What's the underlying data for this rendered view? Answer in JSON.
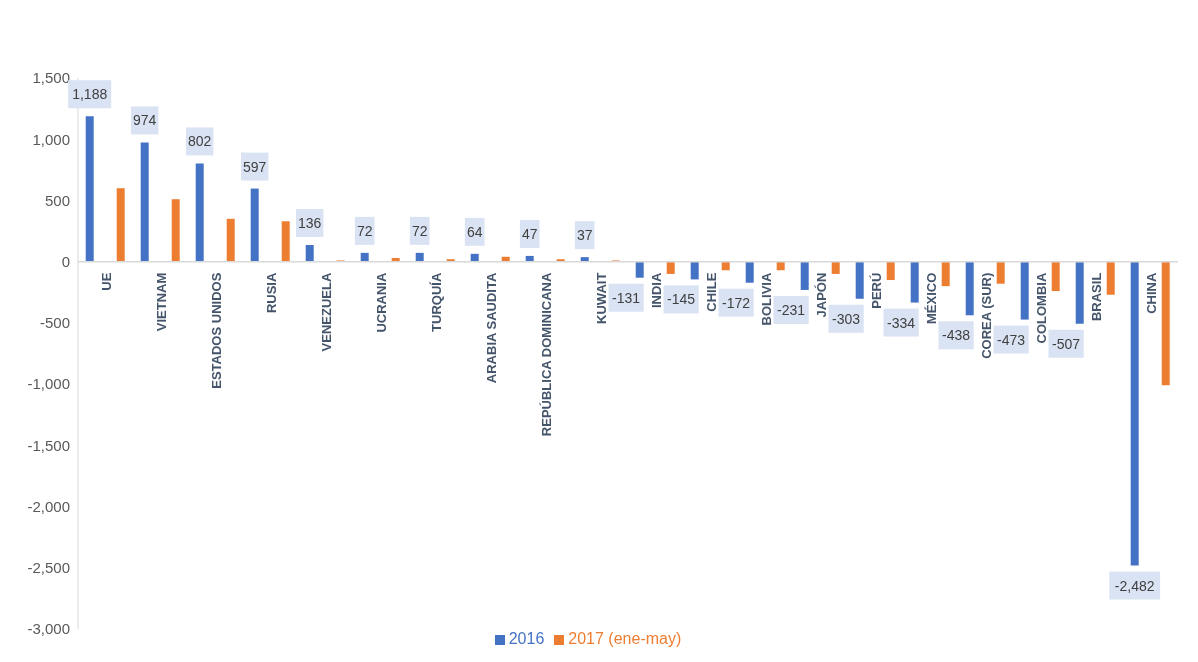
{
  "chart_data": {
    "type": "bar",
    "categories": [
      "UE",
      "VIETNAM",
      "ESTADOS UNIDOS",
      "RUSIA",
      "VENEZUELA",
      "UCRANIA",
      "TURQUÍA",
      "ARABIA SAUDITA",
      "REPÚBLICA DOMINICANA",
      "KUWAIT",
      "INDIA",
      "CHILE",
      "BOLIVIA",
      "JAPÓN",
      "PERÚ",
      "MÉXICO",
      "COREA (SUR)",
      "COLOMBIA",
      "BRASIL",
      "CHINA"
    ],
    "series": [
      {
        "name": "2016",
        "color": "#4472c4",
        "values": [
          1188,
          974,
          802,
          597,
          136,
          72,
          72,
          64,
          47,
          37,
          -131,
          -145,
          -172,
          -231,
          -303,
          -334,
          -438,
          -473,
          -507,
          -2482
        ],
        "value_labels": [
          "1,188",
          "974",
          "802",
          "597",
          "136",
          "72",
          "72",
          "64",
          "47",
          "37",
          "-131",
          "-145",
          "-172",
          "-231",
          "-303",
          "-334",
          "-438",
          "-473",
          "-507",
          "-2,482"
        ]
      },
      {
        "name": "2017 (ene-may)",
        "color": "#ed7d31",
        "values": [
          600,
          510,
          350,
          330,
          10,
          30,
          20,
          40,
          20,
          10,
          -100,
          -70,
          -70,
          -100,
          -150,
          -200,
          -180,
          -240,
          -270,
          -1010
        ]
      }
    ],
    "ylim": [
      -3000,
      1500
    ],
    "yticks": [
      {
        "value": -3000,
        "label": "-3,000"
      },
      {
        "value": -2500,
        "label": "-2,500"
      },
      {
        "value": -2000,
        "label": "-2,000"
      },
      {
        "value": -1500,
        "label": "-1,500"
      },
      {
        "value": -1000,
        "label": "-1,000"
      },
      {
        "value": -500,
        "label": "-500"
      },
      0,
      500,
      {
        "value": 1000,
        "label": "1,000"
      },
      {
        "value": 1500,
        "label": "1,500"
      }
    ],
    "grid": false,
    "legend": "bottom"
  }
}
